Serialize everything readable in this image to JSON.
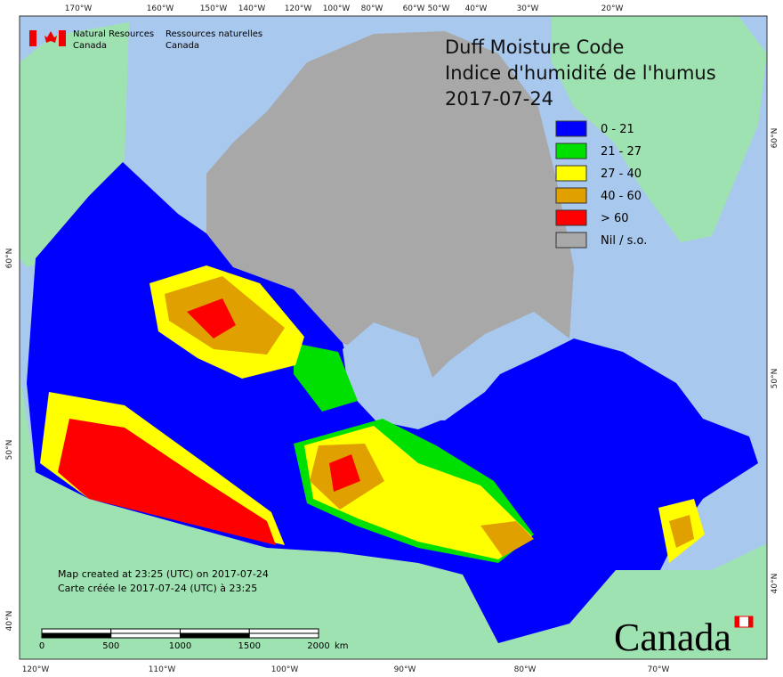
{
  "header": {
    "agency_en": [
      "Natural Resources",
      "Canada"
    ],
    "agency_fr": [
      "Ressources naturelles",
      "Canada"
    ]
  },
  "title": [
    "Duff Moisture Code",
    "Indice d'humidité de l'humus",
    "2017-07-24"
  ],
  "legend": [
    {
      "label": "0 - 21",
      "color": "#0000ff"
    },
    {
      "label": "21 - 27",
      "color": "#00e000"
    },
    {
      "label": "27 - 40",
      "color": "#ffff00"
    },
    {
      "label": "40 - 60",
      "color": "#e0a000"
    },
    {
      "label": "> 60",
      "color": "#ff0000"
    },
    {
      "label": "Nil / s.o.",
      "color": "#a8a8a8"
    }
  ],
  "graticule": {
    "top": [
      "170°W",
      "160°W",
      "150°W",
      "140°W",
      "120°W",
      "100°W",
      "80°W",
      "60°W",
      "50°W",
      "40°W",
      "30°W",
      "20°W"
    ],
    "bottom": [
      "120°W",
      "110°W",
      "100°W",
      "90°W",
      "80°W",
      "70°W"
    ],
    "left": [
      "60°N",
      "50°N",
      "40°N"
    ],
    "right": [
      "60°N",
      "50°N",
      "40°N"
    ]
  },
  "notes": [
    "Map created at 23:25 (UTC) on 2017-07-24",
    "Carte créée le 2017-07-24 (UTC) à 23:25"
  ],
  "scale": {
    "labels": [
      "0",
      "500",
      "1000",
      "1500",
      "2000"
    ],
    "unit": "km"
  },
  "wordmark": "Canada"
}
